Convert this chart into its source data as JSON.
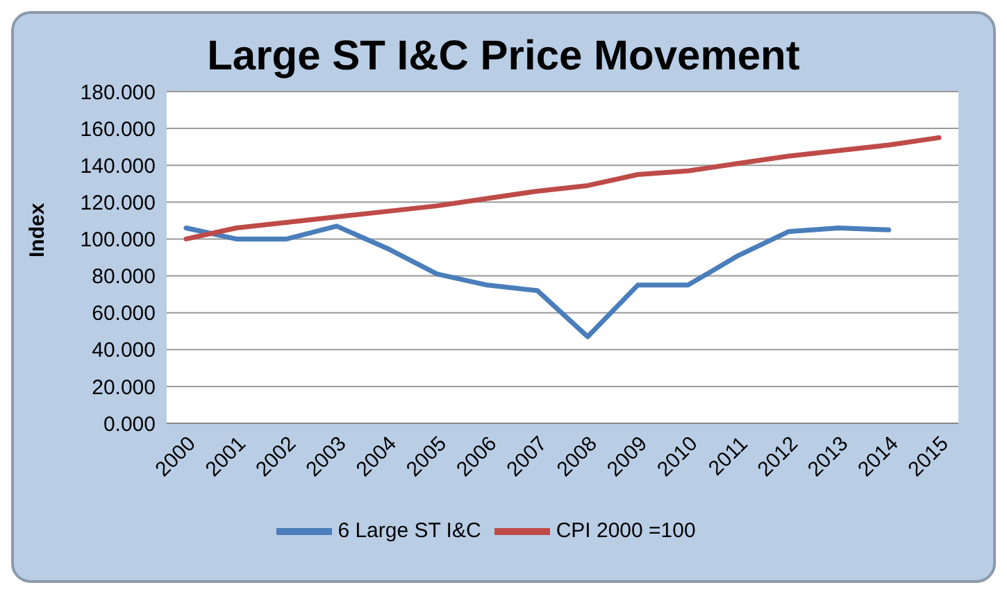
{
  "chart_data": {
    "type": "line",
    "title": "Large ST I&C Price Movement",
    "ylabel": "Index",
    "categories": [
      "2000",
      "2001",
      "2002",
      "2003",
      "2004",
      "2005",
      "2006",
      "2007",
      "2008",
      "2009",
      "2010",
      "2011",
      "2012",
      "2013",
      "2014",
      "2015"
    ],
    "series": [
      {
        "name": "6 Large ST I&C",
        "color": "#4a7ebb",
        "values": [
          106,
          100,
          100,
          107,
          95,
          81,
          75,
          72,
          47,
          75,
          75,
          91,
          104,
          106,
          105,
          null
        ]
      },
      {
        "name": "CPI 2000 =100",
        "color": "#be4b48",
        "values": [
          100,
          106,
          109,
          112,
          115,
          118,
          122,
          126,
          129,
          135,
          137,
          141,
          145,
          148,
          151,
          155
        ]
      }
    ],
    "ylim": [
      0,
      180
    ],
    "yticks": [
      {
        "value": 0,
        "label": "0.000"
      },
      {
        "value": 20,
        "label": "20.000"
      },
      {
        "value": 40,
        "label": "40.000"
      },
      {
        "value": 60,
        "label": "60.000"
      },
      {
        "value": 80,
        "label": "80.000"
      },
      {
        "value": 100,
        "label": "100.000"
      },
      {
        "value": 120,
        "label": "120.000"
      },
      {
        "value": 140,
        "label": "140.000"
      },
      {
        "value": 160,
        "label": "160.000"
      },
      {
        "value": 180,
        "label": "180.000"
      }
    ],
    "grid": "y",
    "legend": "bottom",
    "marker": "none",
    "line_style": "solid"
  }
}
